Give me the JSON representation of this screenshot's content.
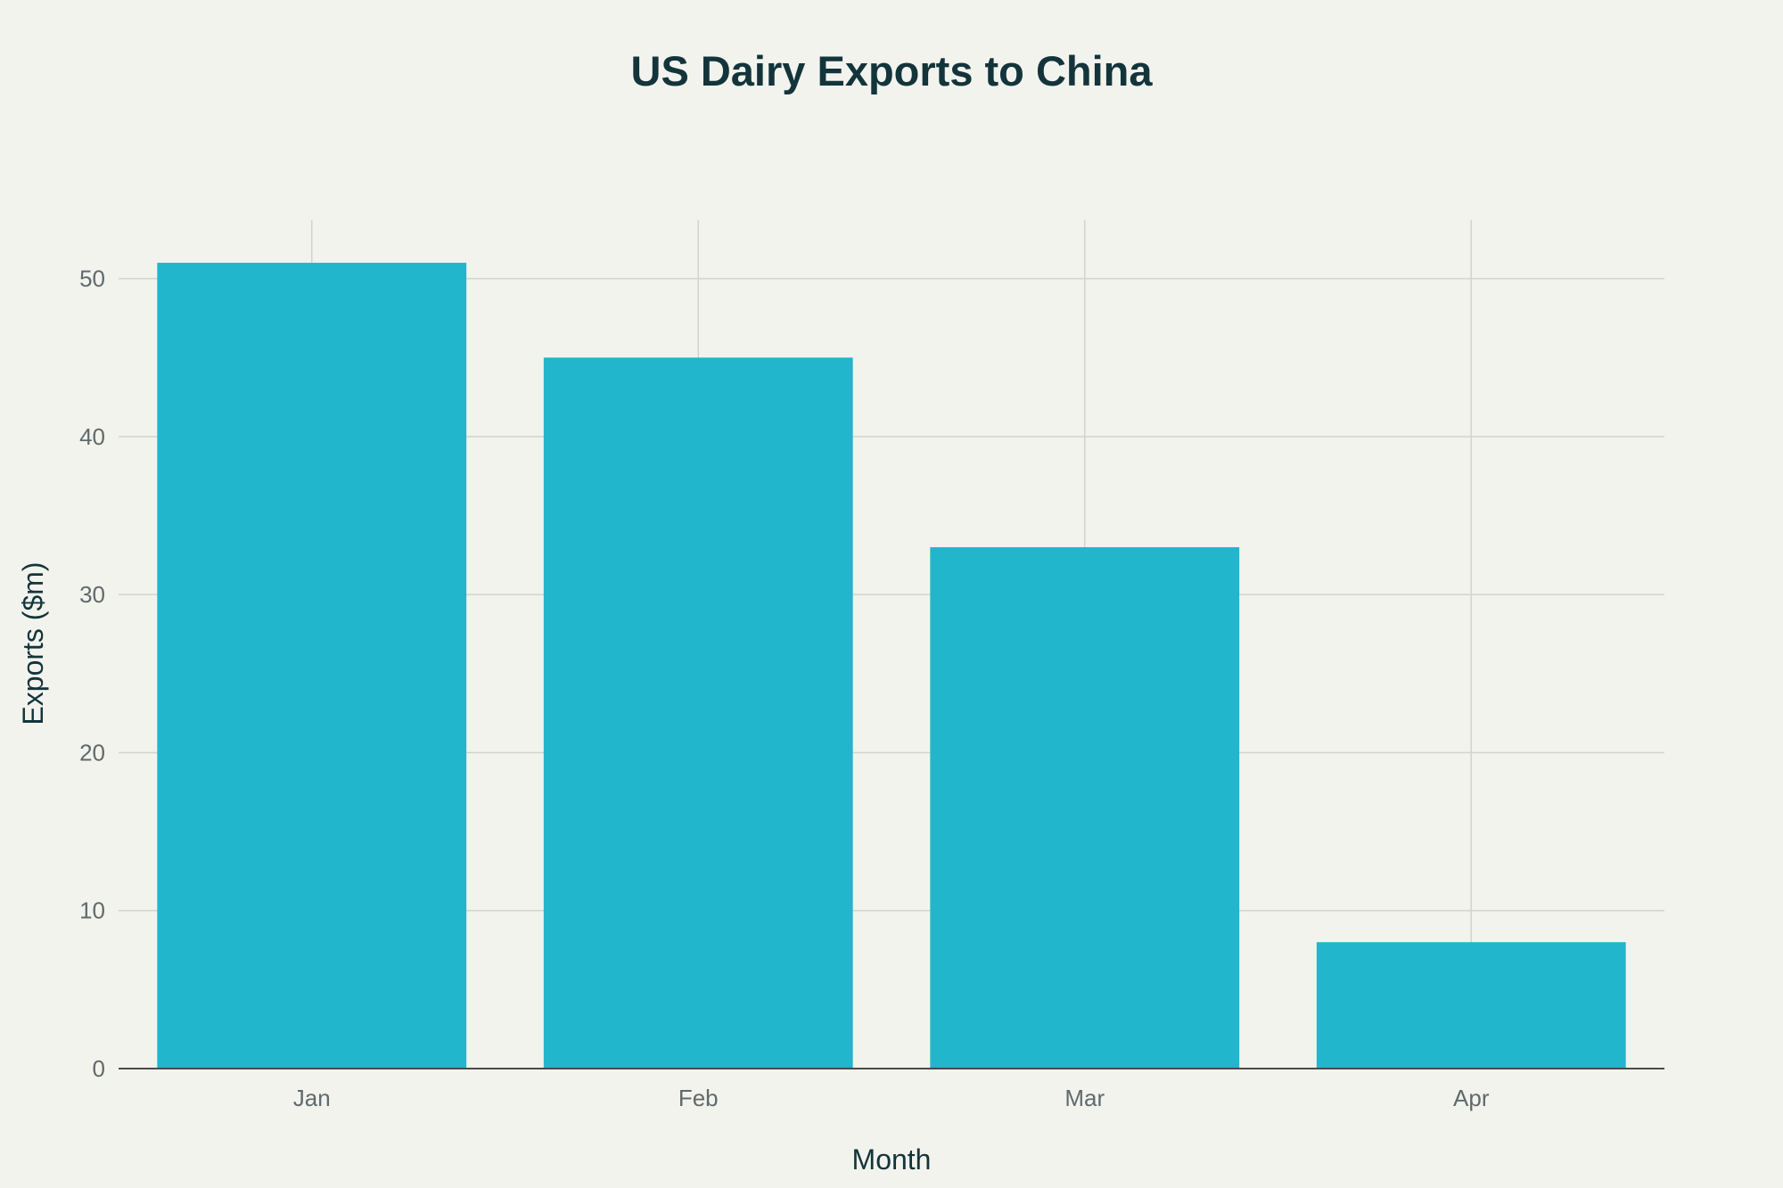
{
  "chart_data": {
    "type": "bar",
    "title": "US Dairy Exports to China",
    "xlabel": "Month",
    "ylabel": "Exports ($m)",
    "categories": [
      "Jan",
      "Feb",
      "Mar",
      "Apr"
    ],
    "values": [
      51,
      45,
      33,
      8
    ],
    "ylim": [
      0,
      53.7
    ],
    "yticks": [
      0,
      10,
      20,
      30,
      40,
      50
    ],
    "grid": true,
    "colors": {
      "bar": "#21b6cc",
      "background": "#f3f3ee",
      "title": "#13343b",
      "axis_title": "#13343b",
      "tick_label": "#5f6a6c",
      "grid": "#d3d3cf",
      "axis": "#4a4a4a"
    }
  }
}
